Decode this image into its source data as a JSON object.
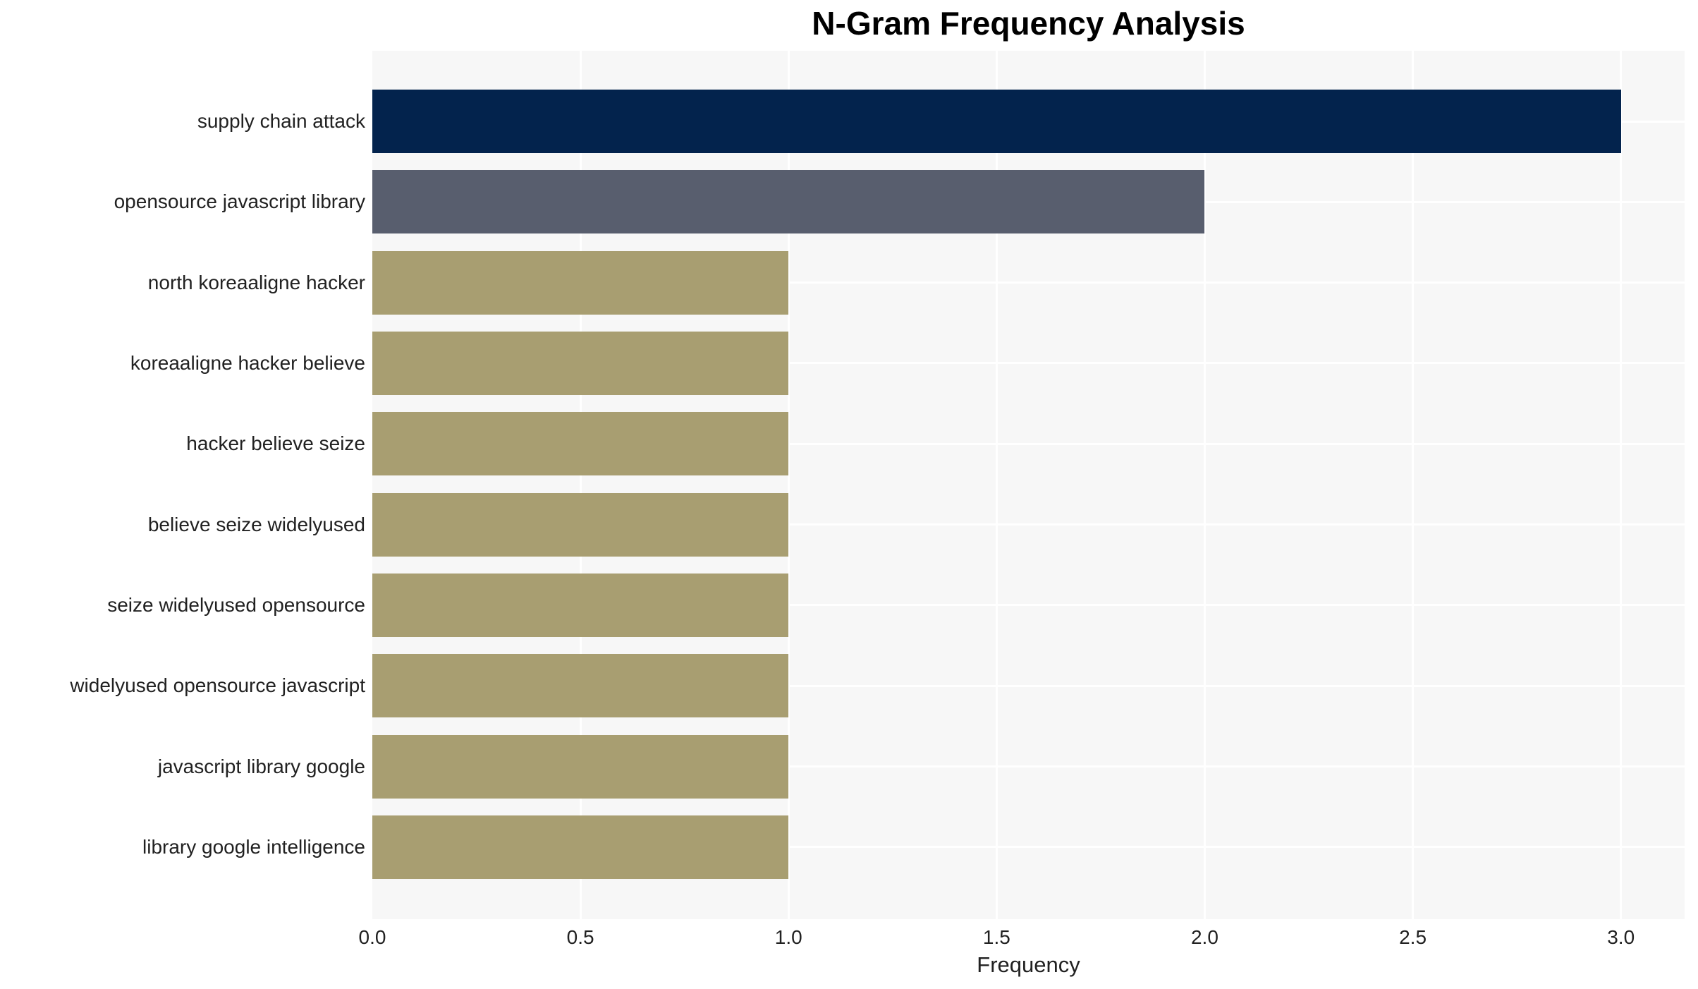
{
  "chart_data": {
    "type": "bar",
    "orientation": "horizontal",
    "title": "N-Gram Frequency Analysis",
    "xlabel": "Frequency",
    "categories": [
      "supply chain attack",
      "opensource javascript library",
      "north koreaaligne hacker",
      "koreaaligne hacker believe",
      "hacker believe seize",
      "believe seize widelyused",
      "seize widelyused opensource",
      "widelyused opensource javascript",
      "javascript library google",
      "library google intelligence"
    ],
    "values": [
      3,
      2,
      1,
      1,
      1,
      1,
      1,
      1,
      1,
      1
    ],
    "xticks": [
      0.0,
      0.5,
      1.0,
      1.5,
      2.0,
      2.5,
      3.0
    ],
    "xtick_labels": [
      "0.0",
      "0.5",
      "1.0",
      "1.5",
      "2.0",
      "2.5",
      "3.0"
    ],
    "xlim": [
      0,
      3.153
    ],
    "grid": true,
    "legend": false,
    "colors": {
      "bar_colors": [
        "#03234d",
        "#585e6e",
        "#a89e71",
        "#a89e71",
        "#a89e71",
        "#a89e71",
        "#a89e71",
        "#a89e71",
        "#a89e71",
        "#a89e71"
      ],
      "plot_background": "#f7f7f7",
      "grid_color": "#ffffff",
      "title_color": "#000000",
      "label_color": "#212121"
    }
  }
}
